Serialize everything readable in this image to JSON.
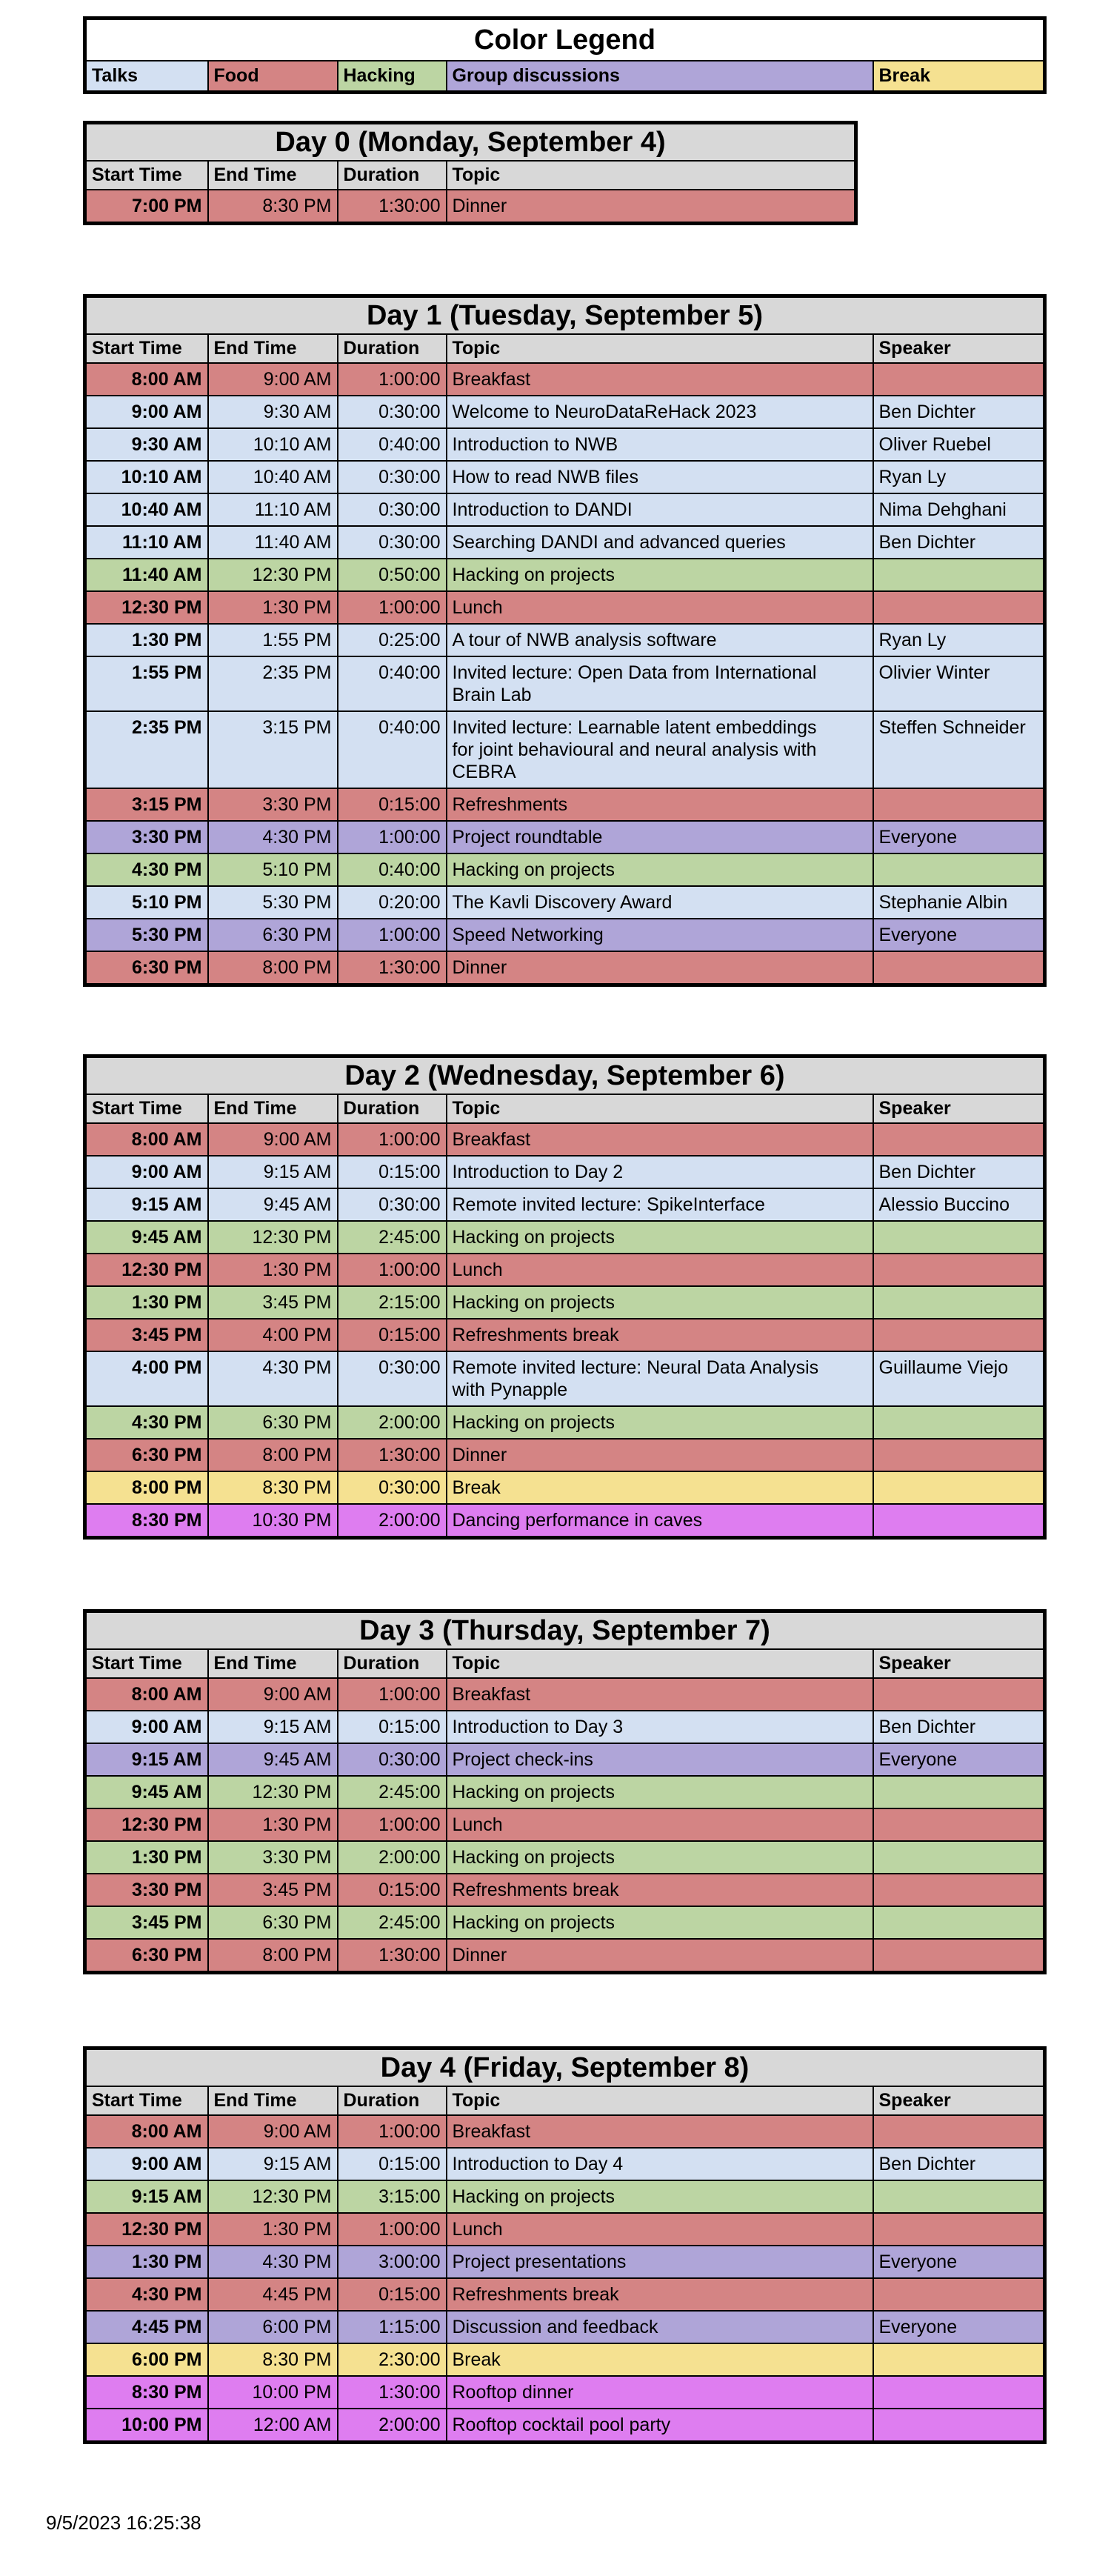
{
  "legend": {
    "title": "Color Legend",
    "items": [
      {
        "label": "Talks",
        "color_key": "talks"
      },
      {
        "label": "Food",
        "color_key": "food"
      },
      {
        "label": "Hacking",
        "color_key": "hacking"
      },
      {
        "label": "Group discussions",
        "color_key": "group"
      },
      {
        "label": "Break",
        "color_key": "break"
      }
    ]
  },
  "colors": {
    "talks": "#d3e0f2",
    "food": "#d48484",
    "hacking": "#bcd5a3",
    "group": "#afa5d8",
    "break": "#f5e191",
    "party": "#de7df0",
    "header_gray": "#d8d8d8"
  },
  "columns": [
    "Start Time",
    "End Time",
    "Duration",
    "Topic",
    "Speaker"
  ],
  "days": [
    {
      "title": "Day 0 (Monday, September 4)",
      "has_speaker": false,
      "rows": [
        {
          "start": "7:00 PM",
          "end": "8:30 PM",
          "duration": "1:30:00",
          "topic": "Dinner",
          "speaker": "",
          "color": "food"
        }
      ]
    },
    {
      "title": "Day 1 (Tuesday, September 5)",
      "has_speaker": true,
      "rows": [
        {
          "start": "8:00 AM",
          "end": "9:00 AM",
          "duration": "1:00:00",
          "topic": "Breakfast",
          "speaker": "",
          "color": "food"
        },
        {
          "start": "9:00 AM",
          "end": "9:30 AM",
          "duration": "0:30:00",
          "topic": "Welcome to NeuroDataReHack 2023",
          "speaker": "Ben Dichter",
          "color": "talks"
        },
        {
          "start": "9:30 AM",
          "end": "10:10 AM",
          "duration": "0:40:00",
          "topic": "Introduction to NWB",
          "speaker": "Oliver Ruebel",
          "color": "talks"
        },
        {
          "start": "10:10 AM",
          "end": "10:40 AM",
          "duration": "0:30:00",
          "topic": "How to read NWB files",
          "speaker": "Ryan Ly",
          "color": "talks"
        },
        {
          "start": "10:40 AM",
          "end": "11:10 AM",
          "duration": "0:30:00",
          "topic": "Introduction to DANDI",
          "speaker": "Nima Dehghani",
          "color": "talks"
        },
        {
          "start": "11:10 AM",
          "end": "11:40 AM",
          "duration": "0:30:00",
          "topic": "Searching DANDI and advanced queries",
          "speaker": "Ben Dichter",
          "color": "talks"
        },
        {
          "start": "11:40 AM",
          "end": "12:30 PM",
          "duration": "0:50:00",
          "topic": "Hacking on projects",
          "speaker": "",
          "color": "hacking"
        },
        {
          "start": "12:30 PM",
          "end": "1:30 PM",
          "duration": "1:00:00",
          "topic": "Lunch",
          "speaker": "",
          "color": "food"
        },
        {
          "start": "1:30 PM",
          "end": "1:55 PM",
          "duration": "0:25:00",
          "topic": "A tour of NWB analysis software",
          "speaker": "Ryan Ly",
          "color": "talks"
        },
        {
          "start": "1:55 PM",
          "end": "2:35 PM",
          "duration": "0:40:00",
          "topic": "Invited lecture: Open Data from International\nBrain Lab",
          "speaker": "Olivier Winter",
          "color": "talks"
        },
        {
          "start": "2:35 PM",
          "end": "3:15 PM",
          "duration": "0:40:00",
          "topic": "Invited lecture: Learnable latent embeddings\nfor joint behavioural and neural analysis with\nCEBRA",
          "speaker": "Steffen Schneider",
          "color": "talks"
        },
        {
          "start": "3:15 PM",
          "end": "3:30 PM",
          "duration": "0:15:00",
          "topic": "Refreshments",
          "speaker": "",
          "color": "food"
        },
        {
          "start": "3:30 PM",
          "end": "4:30 PM",
          "duration": "1:00:00",
          "topic": "Project roundtable",
          "speaker": "Everyone",
          "color": "group"
        },
        {
          "start": "4:30 PM",
          "end": "5:10 PM",
          "duration": "0:40:00",
          "topic": "Hacking on projects",
          "speaker": "",
          "color": "hacking"
        },
        {
          "start": "5:10 PM",
          "end": "5:30 PM",
          "duration": "0:20:00",
          "topic": "The Kavli Discovery Award",
          "speaker": "Stephanie Albin",
          "color": "talks"
        },
        {
          "start": "5:30 PM",
          "end": "6:30 PM",
          "duration": "1:00:00",
          "topic": "Speed Networking",
          "speaker": "Everyone",
          "color": "group"
        },
        {
          "start": "6:30 PM",
          "end": "8:00 PM",
          "duration": "1:30:00",
          "topic": "Dinner",
          "speaker": "",
          "color": "food"
        }
      ]
    },
    {
      "title": "Day 2 (Wednesday, September 6)",
      "has_speaker": true,
      "rows": [
        {
          "start": "8:00 AM",
          "end": "9:00 AM",
          "duration": "1:00:00",
          "topic": "Breakfast",
          "speaker": "",
          "color": "food"
        },
        {
          "start": "9:00 AM",
          "end": "9:15 AM",
          "duration": "0:15:00",
          "topic": "Introduction to Day 2",
          "speaker": "Ben Dichter",
          "color": "talks"
        },
        {
          "start": "9:15 AM",
          "end": "9:45 AM",
          "duration": "0:30:00",
          "topic": "Remote invited lecture: SpikeInterface",
          "speaker": "Alessio Buccino",
          "color": "talks"
        },
        {
          "start": "9:45 AM",
          "end": "12:30 PM",
          "duration": "2:45:00",
          "topic": "Hacking on projects",
          "speaker": "",
          "color": "hacking"
        },
        {
          "start": "12:30 PM",
          "end": "1:30 PM",
          "duration": "1:00:00",
          "topic": "Lunch",
          "speaker": "",
          "color": "food"
        },
        {
          "start": "1:30 PM",
          "end": "3:45 PM",
          "duration": "2:15:00",
          "topic": "Hacking on projects",
          "speaker": "",
          "color": "hacking"
        },
        {
          "start": "3:45 PM",
          "end": "4:00 PM",
          "duration": "0:15:00",
          "topic": "Refreshments break",
          "speaker": "",
          "color": "food"
        },
        {
          "start": "4:00 PM",
          "end": "4:30 PM",
          "duration": "0:30:00",
          "topic": "Remote invited lecture: Neural Data Analysis\nwith Pynapple",
          "speaker": "Guillaume Viejo",
          "color": "talks"
        },
        {
          "start": "4:30 PM",
          "end": "6:30 PM",
          "duration": "2:00:00",
          "topic": "Hacking on projects",
          "speaker": "",
          "color": "hacking"
        },
        {
          "start": "6:30 PM",
          "end": "8:00 PM",
          "duration": "1:30:00",
          "topic": "Dinner",
          "speaker": "",
          "color": "food"
        },
        {
          "start": "8:00 PM",
          "end": "8:30 PM",
          "duration": "0:30:00",
          "topic": "Break",
          "speaker": "",
          "color": "break"
        },
        {
          "start": "8:30 PM",
          "end": "10:30 PM",
          "duration": "2:00:00",
          "topic": "Dancing performance in caves",
          "speaker": "",
          "color": "party"
        }
      ]
    },
    {
      "title": "Day 3 (Thursday, September 7)",
      "has_speaker": true,
      "rows": [
        {
          "start": "8:00 AM",
          "end": "9:00 AM",
          "duration": "1:00:00",
          "topic": "Breakfast",
          "speaker": "",
          "color": "food"
        },
        {
          "start": "9:00 AM",
          "end": "9:15 AM",
          "duration": "0:15:00",
          "topic": "Introduction to Day 3",
          "speaker": "Ben Dichter",
          "color": "talks"
        },
        {
          "start": "9:15 AM",
          "end": "9:45 AM",
          "duration": "0:30:00",
          "topic": "Project check-ins",
          "speaker": "Everyone",
          "color": "group"
        },
        {
          "start": "9:45 AM",
          "end": "12:30 PM",
          "duration": "2:45:00",
          "topic": "Hacking on projects",
          "speaker": "",
          "color": "hacking"
        },
        {
          "start": "12:30 PM",
          "end": "1:30 PM",
          "duration": "1:00:00",
          "topic": "Lunch",
          "speaker": "",
          "color": "food"
        },
        {
          "start": "1:30 PM",
          "end": "3:30 PM",
          "duration": "2:00:00",
          "topic": "Hacking on projects",
          "speaker": "",
          "color": "hacking"
        },
        {
          "start": "3:30 PM",
          "end": "3:45 PM",
          "duration": "0:15:00",
          "topic": "Refreshments break",
          "speaker": "",
          "color": "food"
        },
        {
          "start": "3:45 PM",
          "end": "6:30 PM",
          "duration": "2:45:00",
          "topic": "Hacking on projects",
          "speaker": "",
          "color": "hacking"
        },
        {
          "start": "6:30 PM",
          "end": "8:00 PM",
          "duration": "1:30:00",
          "topic": "Dinner",
          "speaker": "",
          "color": "food"
        }
      ]
    },
    {
      "title": "Day 4 (Friday, September 8)",
      "has_speaker": true,
      "rows": [
        {
          "start": "8:00 AM",
          "end": "9:00 AM",
          "duration": "1:00:00",
          "topic": "Breakfast",
          "speaker": "",
          "color": "food"
        },
        {
          "start": "9:00 AM",
          "end": "9:15 AM",
          "duration": "0:15:00",
          "topic": "Introduction to Day 4",
          "speaker": "Ben Dichter",
          "color": "talks"
        },
        {
          "start": "9:15 AM",
          "end": "12:30 PM",
          "duration": "3:15:00",
          "topic": "Hacking on projects",
          "speaker": "",
          "color": "hacking"
        },
        {
          "start": "12:30 PM",
          "end": "1:30 PM",
          "duration": "1:00:00",
          "topic": "Lunch",
          "speaker": "",
          "color": "food"
        },
        {
          "start": "1:30 PM",
          "end": "4:30 PM",
          "duration": "3:00:00",
          "topic": "Project presentations",
          "speaker": "Everyone",
          "color": "group"
        },
        {
          "start": "4:30 PM",
          "end": "4:45 PM",
          "duration": "0:15:00",
          "topic": "Refreshments break",
          "speaker": "",
          "color": "food"
        },
        {
          "start": "4:45 PM",
          "end": "6:00 PM",
          "duration": "1:15:00",
          "topic": "Discussion and feedback",
          "speaker": "Everyone",
          "color": "group"
        },
        {
          "start": "6:00 PM",
          "end": "8:30 PM",
          "duration": "2:30:00",
          "topic": "Break",
          "speaker": "",
          "color": "break"
        },
        {
          "start": "8:30 PM",
          "end": "10:00 PM",
          "duration": "1:30:00",
          "topic": "Rooftop dinner",
          "speaker": "",
          "color": "party"
        },
        {
          "start": "10:00 PM",
          "end": "12:00 AM",
          "duration": "2:00:00",
          "topic": "Rooftop cocktail pool party",
          "speaker": "",
          "color": "party"
        }
      ]
    }
  ],
  "footer": {
    "generated": "9/5/2023 16:25:38"
  }
}
